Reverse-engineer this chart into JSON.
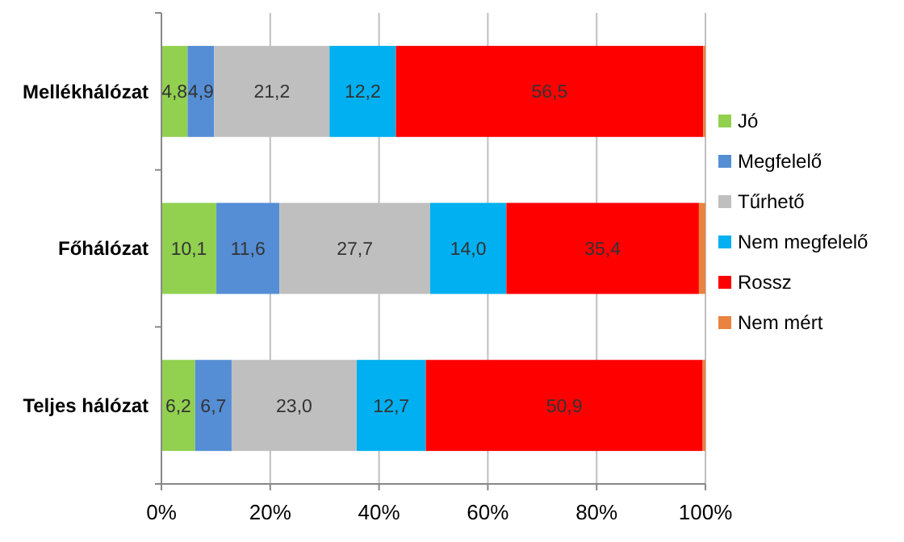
{
  "chart_data": {
    "type": "bar",
    "orientation": "horizontal",
    "stacked": true,
    "categories": [
      "Mellékhálózat",
      "Főhálózat",
      "Teljes hálózat"
    ],
    "series": [
      {
        "name": "Jó",
        "color": "#92d050",
        "values": [
          4.8,
          10.1,
          6.2
        ],
        "value_labels": [
          "4,8",
          "10,1",
          "6,2"
        ]
      },
      {
        "name": "Megfelelő",
        "color": "#558ed5",
        "values": [
          4.9,
          11.6,
          6.7
        ],
        "value_labels": [
          "4,9",
          "11,6",
          "6,7"
        ]
      },
      {
        "name": "Tűrhető",
        "color": "#bfbfbf",
        "values": [
          21.2,
          27.7,
          23.0
        ],
        "value_labels": [
          "21,2",
          "27,7",
          "23,0"
        ]
      },
      {
        "name": "Nem megfelelő",
        "color": "#00b0f0",
        "values": [
          12.2,
          14.0,
          12.7
        ],
        "value_labels": [
          "12,2",
          "14,0",
          "12,7"
        ]
      },
      {
        "name": "Rossz",
        "color": "#ff0000",
        "values": [
          56.5,
          35.4,
          50.9
        ],
        "value_labels": [
          "56,5",
          "35,4",
          "50,9"
        ]
      },
      {
        "name": "Nem mért",
        "color": "#e8843f",
        "values": [
          0.4,
          1.2,
          0.5
        ],
        "value_labels": [
          null,
          null,
          null
        ]
      }
    ],
    "xlim": [
      0,
      100
    ],
    "xticks": [
      {
        "value": 0,
        "label": "0%"
      },
      {
        "value": 20,
        "label": "20%"
      },
      {
        "value": 40,
        "label": "40%"
      },
      {
        "value": 60,
        "label": "60%"
      },
      {
        "value": 80,
        "label": "80%"
      },
      {
        "value": 100,
        "label": "100%"
      }
    ],
    "grid": "x",
    "legend": "right"
  }
}
